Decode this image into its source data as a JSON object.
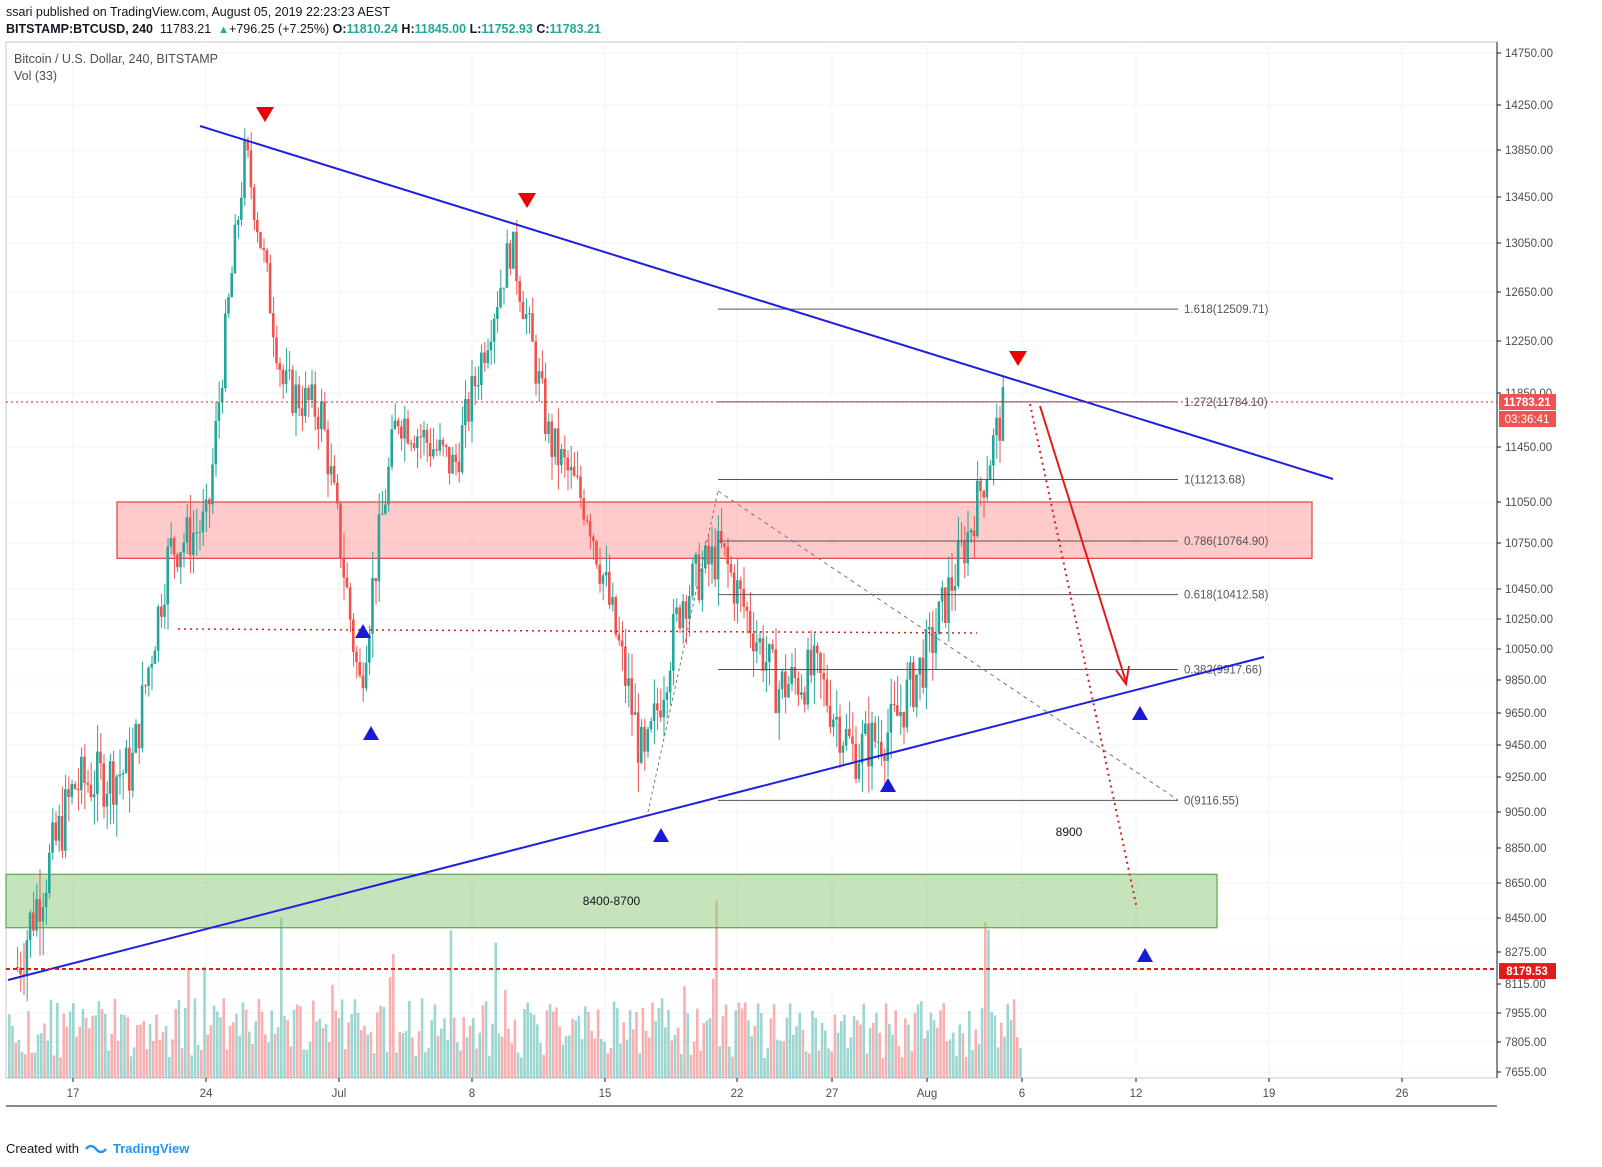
{
  "header": {
    "published_line": "ssari published on TradingView.com, August 05, 2019 22:23:23 AEST",
    "symbol": "BITSTAMP:BTCUSD, 240",
    "last": "11783.21",
    "change_arrow": "▲",
    "change": "+796.25 (+7.25%)",
    "o_label": "O:",
    "o_value": "11810.24",
    "h_label": "H:",
    "h_value": "11845.00",
    "l_label": "L:",
    "l_value": "11752.93",
    "c_label": "C:",
    "c_value": "11783.21"
  },
  "legend": {
    "title": "Bitcoin / U.S. Dollar, 240, BITSTAMP",
    "volume": "Vol (33)"
  },
  "footer": {
    "created_with": "Created with",
    "brand": "TradingView"
  },
  "colors": {
    "up": "#26a69a",
    "down": "#ef5350",
    "trendline": "#1f1fdf",
    "resistance_zone": "#ff8a8a",
    "support_zone": "#8bc97a",
    "dotted_red": "#e01b1b"
  },
  "chart_data": {
    "type": "candlestick",
    "title": "Bitcoin / U.S. Dollar, 240, BITSTAMP",
    "symbol": "BITSTAMP:BTCUSD",
    "interval": "240",
    "x_ticks": [
      "17",
      "24",
      "Jul",
      "8",
      "15",
      "22",
      "27",
      "Aug",
      "6",
      "12",
      "19",
      "26"
    ],
    "y_ticks": [
      "14750.00",
      "14250.00",
      "13850.00",
      "13450.00",
      "13050.00",
      "12650.00",
      "12250.00",
      "11850.00",
      "11450.00",
      "11050.00",
      "10750.00",
      "10450.00",
      "10250.00",
      "10050.00",
      "9850.00",
      "9650.00",
      "9450.00",
      "9250.00",
      "9050.00",
      "8850.00",
      "8650.00",
      "8450.00",
      "8275.00",
      "8115.00",
      "7955.00",
      "7805.00",
      "7655.00"
    ],
    "price_labels": [
      {
        "label": "11783.21",
        "value": 11783.21,
        "timer": "03:36:41",
        "color": "#ef5350"
      },
      {
        "label": "8179.53",
        "value": 8179.53,
        "color": "#e01b1b"
      }
    ],
    "price_series_approx": [
      {
        "date": "2019-06-14",
        "close": 8200
      },
      {
        "date": "2019-06-17",
        "close": 9200
      },
      {
        "date": "2019-06-20",
        "close": 9300
      },
      {
        "date": "2019-06-22",
        "close": 10700
      },
      {
        "date": "2019-06-24",
        "close": 10900
      },
      {
        "date": "2019-06-26",
        "close": 13850
      },
      {
        "date": "2019-06-28",
        "close": 11900
      },
      {
        "date": "2019-06-30",
        "close": 11700
      },
      {
        "date": "2019-07-02",
        "close": 9800
      },
      {
        "date": "2019-07-04",
        "close": 11700
      },
      {
        "date": "2019-07-07",
        "close": 11300
      },
      {
        "date": "2019-07-10",
        "close": 13050
      },
      {
        "date": "2019-07-12",
        "close": 11500
      },
      {
        "date": "2019-07-14",
        "close": 11000
      },
      {
        "date": "2019-07-17",
        "close": 9300
      },
      {
        "date": "2019-07-19",
        "close": 10400
      },
      {
        "date": "2019-07-21",
        "close": 10700
      },
      {
        "date": "2019-07-24",
        "close": 9800
      },
      {
        "date": "2019-07-26",
        "close": 9900
      },
      {
        "date": "2019-07-28",
        "close": 9400
      },
      {
        "date": "2019-07-30",
        "close": 9550
      },
      {
        "date": "2019-08-01",
        "close": 10050
      },
      {
        "date": "2019-08-03",
        "close": 10800
      },
      {
        "date": "2019-08-05",
        "close": 11783.21
      }
    ],
    "fibonacci": [
      {
        "ratio": "1.618",
        "value": 12509.71,
        "label": "1.618(12509.71)"
      },
      {
        "ratio": "1.272",
        "value": 11784.1,
        "label": "1.272(11784.10)"
      },
      {
        "ratio": "1",
        "value": 11213.68,
        "label": "1(11213.68)"
      },
      {
        "ratio": "0.786",
        "value": 10764.9,
        "label": "0.786(10764.90)"
      },
      {
        "ratio": "0.618",
        "value": 10412.58,
        "label": "0.618(10412.58)"
      },
      {
        "ratio": "0.382",
        "value": 9917.66,
        "label": "0.382(9917.66)"
      },
      {
        "ratio": "0",
        "value": 9116.55,
        "label": "0(9116.55)"
      }
    ],
    "zones": [
      {
        "name": "resistance",
        "from": 10650,
        "to": 11050,
        "label": ""
      },
      {
        "name": "support",
        "from": 8400,
        "to": 8700,
        "label": "8400-8700"
      }
    ],
    "annotations": [
      {
        "text": "8900"
      }
    ]
  }
}
